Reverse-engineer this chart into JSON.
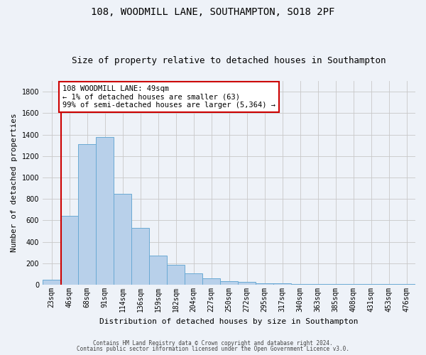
{
  "title1": "108, WOODMILL LANE, SOUTHAMPTON, SO18 2PF",
  "title2": "Size of property relative to detached houses in Southampton",
  "xlabel": "Distribution of detached houses by size in Southampton",
  "ylabel": "Number of detached properties",
  "categories": [
    "23sqm",
    "46sqm",
    "68sqm",
    "91sqm",
    "114sqm",
    "136sqm",
    "159sqm",
    "182sqm",
    "204sqm",
    "227sqm",
    "250sqm",
    "272sqm",
    "295sqm",
    "317sqm",
    "340sqm",
    "363sqm",
    "385sqm",
    "408sqm",
    "431sqm",
    "453sqm",
    "476sqm"
  ],
  "bar_heights": [
    50,
    645,
    1310,
    1380,
    848,
    530,
    275,
    185,
    105,
    60,
    35,
    25,
    15,
    15,
    10,
    5,
    5,
    5,
    5,
    5,
    5
  ],
  "bar_color": "#b8d0ea",
  "bar_edge_color": "#6aaad4",
  "vline_color": "#cc0000",
  "annotation_text": "108 WOODMILL LANE: 49sqm\n← 1% of detached houses are smaller (63)\n99% of semi-detached houses are larger (5,364) →",
  "annotation_box_color": "#ffffff",
  "annotation_box_edge": "#cc0000",
  "ylim": [
    0,
    1900
  ],
  "yticks": [
    0,
    200,
    400,
    600,
    800,
    1000,
    1200,
    1400,
    1600,
    1800
  ],
  "footer1": "Contains HM Land Registry data © Crown copyright and database right 2024.",
  "footer2": "Contains public sector information licensed under the Open Government Licence v3.0.",
  "background_color": "#eef2f8",
  "grid_color": "#c8c8c8",
  "title1_fontsize": 10,
  "title2_fontsize": 9,
  "ylabel_fontsize": 8,
  "xlabel_fontsize": 8,
  "tick_fontsize": 7,
  "annot_fontsize": 7.5,
  "footer_fontsize": 5.5
}
